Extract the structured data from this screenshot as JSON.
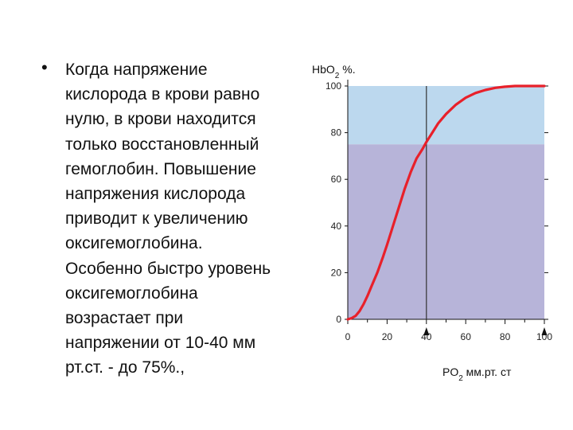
{
  "slide": {
    "bullet_symbol": "•",
    "paragraph_lines": [
      "Когда напряжение",
      "кислорода в крови равно",
      "нулю, в крови находится",
      "только восстановленный",
      "гемоглобин. Повышение",
      "напряжения кислорода",
      "приводит к увеличению",
      "оксигемоглобина.",
      "Особенно быстро уровень",
      "оксигемоглобина",
      "возрастает при",
      "напряжении от 10-40 мм",
      "рт.ст. - до 75%.,"
    ]
  },
  "chart_data": {
    "type": "line",
    "ylabel_main": "Hb",
    "ylabel_o2": "O",
    "ylabel_sub": "2",
    "ylabel_tail": " %.",
    "xlabel_main": "PO",
    "xlabel_sub": "2",
    "xlabel_tail": " мм.рт. ст",
    "xlim": [
      0,
      100
    ],
    "ylim": [
      0,
      100
    ],
    "xticks": [
      "0",
      "20",
      "40",
      "60",
      "80",
      "100"
    ],
    "yticks": [
      "0",
      "20",
      "40",
      "60",
      "80",
      "100"
    ],
    "arrow_markers_x": [
      40,
      100
    ],
    "reference_line_x": 40,
    "shaded_upper_level": 75,
    "series": [
      {
        "color": "#e8202a",
        "x": [
          0,
          2,
          4,
          6,
          8,
          10,
          12,
          15,
          18,
          20,
          23,
          26,
          29,
          32,
          35,
          38,
          40,
          43,
          46,
          50,
          55,
          60,
          65,
          70,
          75,
          80,
          85,
          90,
          95,
          100
        ],
        "y": [
          0,
          0.5,
          1.5,
          3.5,
          6.5,
          10,
          14,
          20,
          27,
          32,
          40,
          48,
          56,
          63,
          69,
          73,
          76,
          80,
          84,
          88,
          92,
          95,
          97,
          98.3,
          99.2,
          99.7,
          100,
          100,
          100,
          100
        ]
      }
    ],
    "colors": {
      "upper_region": "#bcd8ee",
      "lower_region": "#b7b4d9",
      "curve": "#e8202a",
      "reference_line": "#333333"
    }
  }
}
